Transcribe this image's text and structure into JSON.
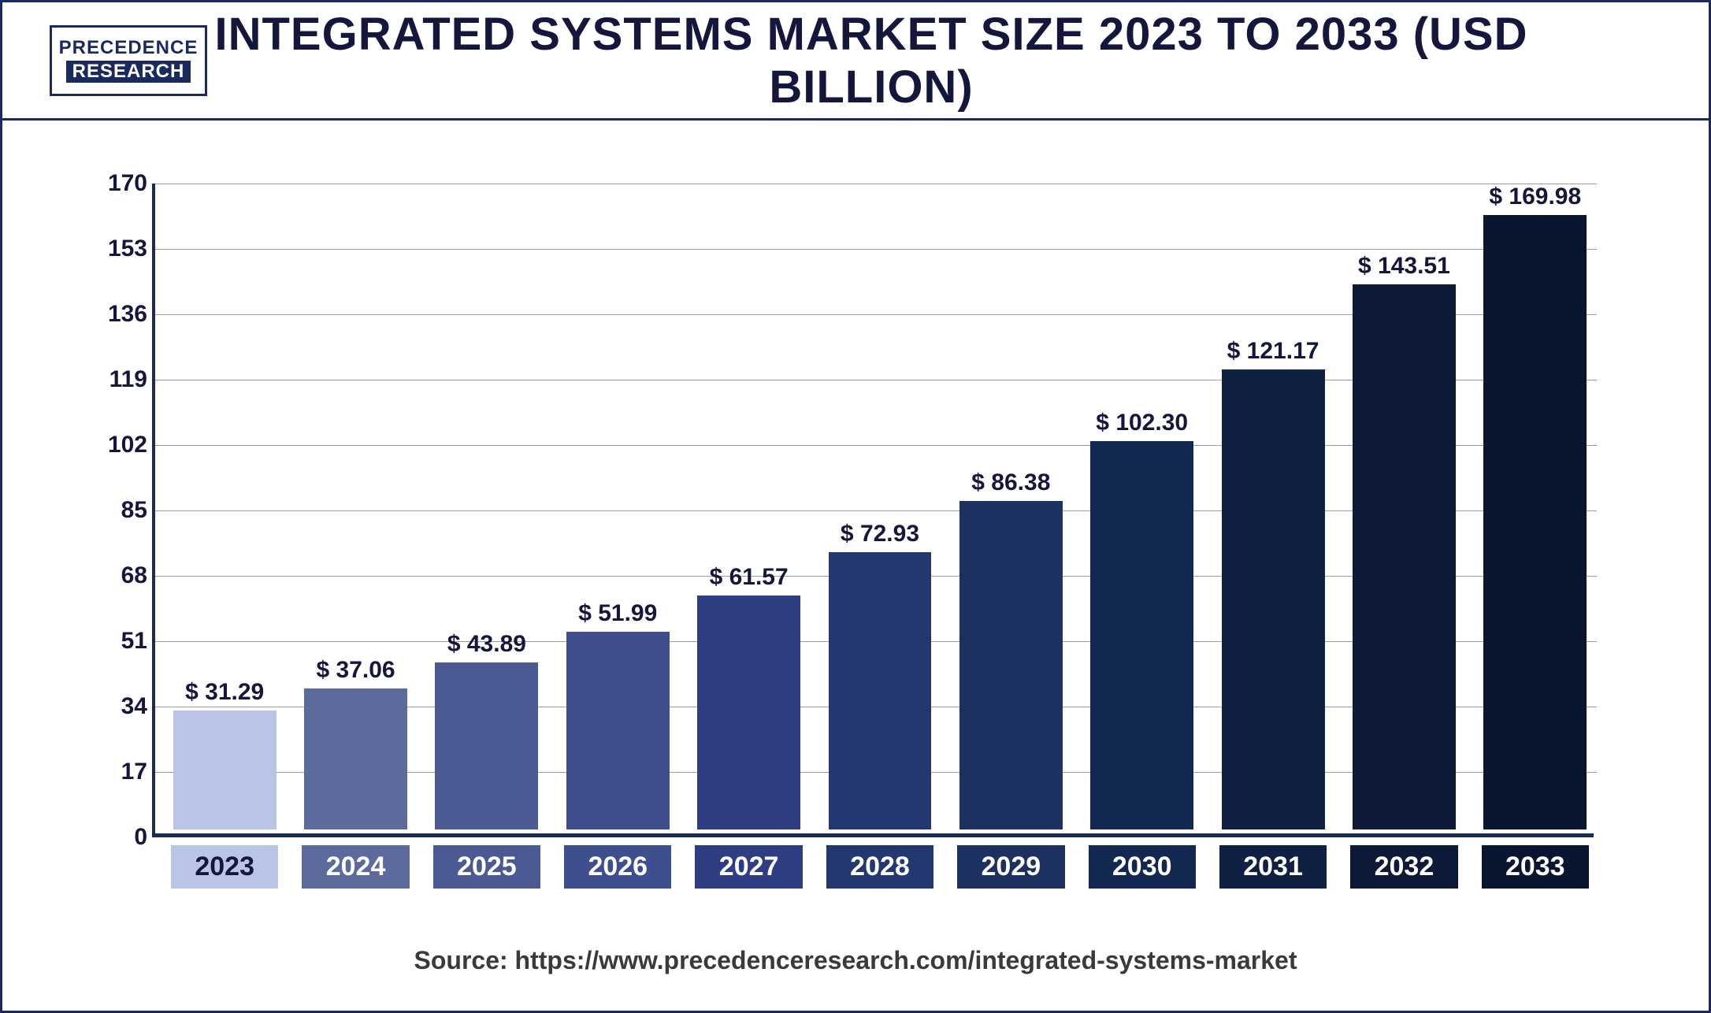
{
  "logo": {
    "top": "PRECEDENCE",
    "bottom": "RESEARCH"
  },
  "title": "INTEGRATED SYSTEMS MARKET SIZE 2023 TO 2033 (USD BILLION)",
  "source_label": "Source: ",
  "source_url": "https://www.precedenceresearch.com/integrated-systems-market",
  "chart": {
    "type": "bar",
    "y_ticks": [
      0,
      17,
      34,
      51,
      68,
      85,
      102,
      119,
      136,
      153,
      170
    ],
    "ylim": [
      0,
      170
    ],
    "grid_color": "#9b9da8",
    "axis_color": "#1a2a5e",
    "background_color": "#ffffff",
    "tick_fontsize": 30,
    "value_label_fontsize": 30,
    "xlabel_fontsize": 34,
    "categories": [
      "2023",
      "2024",
      "2025",
      "2026",
      "2027",
      "2028",
      "2029",
      "2030",
      "2031",
      "2032",
      "2033"
    ],
    "values": [
      31.29,
      37.06,
      43.89,
      51.99,
      61.57,
      72.93,
      86.38,
      102.3,
      121.17,
      143.51,
      169.98
    ],
    "value_labels": [
      "$ 31.29",
      "$ 37.06",
      "$ 43.89",
      "$ 51.99",
      "$ 61.57",
      "$ 72.93",
      "$ 86.38",
      "$ 102.30",
      "$ 121.17",
      "$ 143.51",
      "$ 169.98"
    ],
    "bar_colors": [
      "#b9c4e6",
      "#5d6a9c",
      "#4c5a94",
      "#3e4e8f",
      "#2f3d82",
      "#233870",
      "#1c3160",
      "#132850",
      "#0f2042",
      "#0c1a38",
      "#0a1630"
    ],
    "x_label_bg_colors": [
      "#b9c4e6",
      "#5d6a9c",
      "#4c5a94",
      "#3e4e8f",
      "#2f3d82",
      "#233870",
      "#1c3160",
      "#132850",
      "#0f2042",
      "#0c1a38",
      "#0a1630"
    ],
    "x_label_text_color_first": "#14163b",
    "x_label_text_color_rest": "#ffffff"
  }
}
